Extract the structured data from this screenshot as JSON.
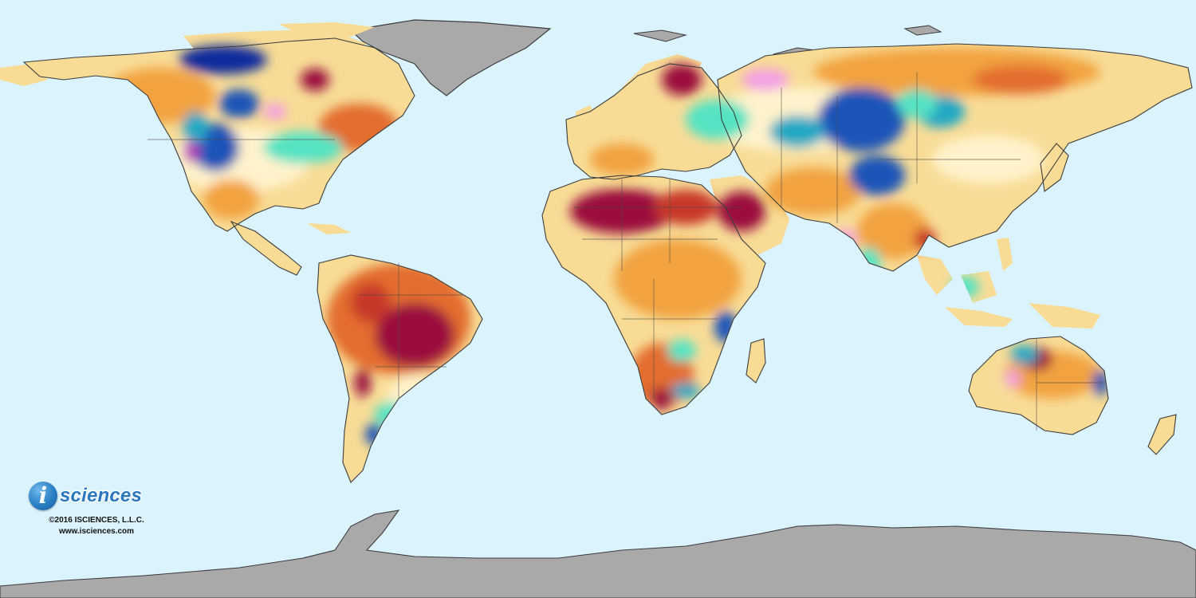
{
  "map": {
    "ocean_color": "#dbf3fd",
    "land_base_color": "#f8dc96",
    "no_data_color": "#a9a9a9",
    "border_color": "#3c3c3c",
    "anomaly_palette": [
      "#9b0f3e",
      "#c8372c",
      "#e36d2e",
      "#f2a33f",
      "#f8dc96",
      "#fff3cc",
      "#54e3c3",
      "#22a8c4",
      "#1d55b8",
      "#0b2c9c",
      "#f3a0e3",
      "#b735b8"
    ]
  },
  "branding": {
    "logo_letter": "i",
    "logo_word": "sciences",
    "copyright": "©2016 ISCIENCES, L.L.C.",
    "website": "www.isciences.com"
  }
}
